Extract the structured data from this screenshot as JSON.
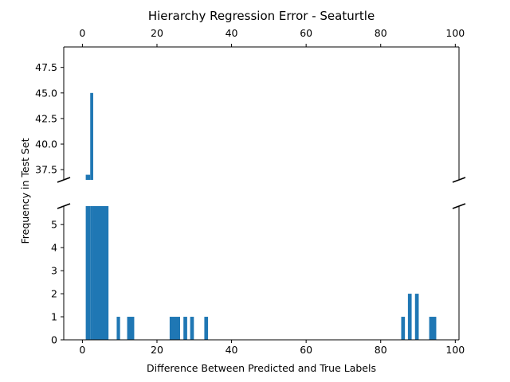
{
  "chart_data": {
    "type": "bar",
    "title": "Hierarchy Regression Error - Seaturtle",
    "xlabel": "Difference Between Predicted and True Labels",
    "ylabel": "Frequency in Test Set",
    "bar_color": "#1f77b4",
    "broken_y_axis": true,
    "xlim": [
      -5,
      101
    ],
    "x_ticks": [
      0,
      20,
      40,
      60,
      80,
      100
    ],
    "upper_panel": {
      "ylim": [
        36.5,
        49.5
      ],
      "y_ticks": [
        37.5,
        40.0,
        42.5,
        45.0,
        47.5
      ]
    },
    "lower_panel": {
      "ylim": [
        0,
        5.8
      ],
      "y_ticks": [
        0,
        1,
        2,
        3,
        4,
        5
      ]
    },
    "bars": [
      {
        "x_start": 0.9,
        "x_end": 2.1,
        "value": 37
      },
      {
        "x_start": 2.1,
        "x_end": 2.9,
        "value": 45
      },
      {
        "x_start": 2.9,
        "x_end": 7.0,
        "value": 5.8
      },
      {
        "x_start": 9.2,
        "x_end": 10.1,
        "value": 1
      },
      {
        "x_start": 12.0,
        "x_end": 13.9,
        "value": 1
      },
      {
        "x_start": 23.4,
        "x_end": 26.2,
        "value": 1
      },
      {
        "x_start": 27.1,
        "x_end": 28.1,
        "value": 1
      },
      {
        "x_start": 28.9,
        "x_end": 29.9,
        "value": 1
      },
      {
        "x_start": 32.7,
        "x_end": 33.7,
        "value": 1
      },
      {
        "x_start": 85.5,
        "x_end": 86.5,
        "value": 1
      },
      {
        "x_start": 87.3,
        "x_end": 88.3,
        "value": 2
      },
      {
        "x_start": 89.2,
        "x_end": 90.2,
        "value": 2
      },
      {
        "x_start": 93.0,
        "x_end": 94.9,
        "value": 1
      }
    ]
  }
}
